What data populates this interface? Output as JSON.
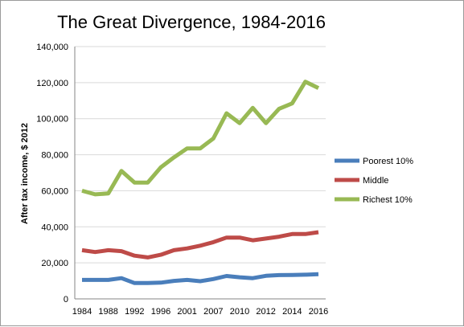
{
  "chart_data": {
    "type": "line",
    "title": "The Great Divergence, 1984-2016",
    "xlabel": "",
    "ylabel": "After tax income, $ 2012",
    "ylim": [
      0,
      140000
    ],
    "yticks": [
      0,
      20000,
      40000,
      60000,
      80000,
      100000,
      120000,
      140000
    ],
    "ytick_labels": [
      "0",
      "20,000",
      "40,000",
      "60,000",
      "80,000",
      "100,000",
      "120,000",
      "140,000"
    ],
    "grid": "horizontal",
    "legend_position": "right",
    "x": [
      "1984",
      "1986",
      "1988",
      "1990",
      "1992",
      "1994",
      "1996",
      "1998",
      "2001",
      "2003",
      "2007",
      "2008",
      "2010",
      "2011",
      "2012",
      "2013",
      "2014",
      "2015",
      "2016"
    ],
    "x_tick_labels": [
      "1984",
      "1988",
      "1992",
      "1996",
      "2001",
      "2007",
      "2010",
      "2012",
      "2014",
      "2016"
    ],
    "series": [
      {
        "name": "Poorest 10%",
        "color": "#4a7ebb",
        "values": [
          10500,
          10500,
          10500,
          11500,
          8800,
          8800,
          9000,
          10000,
          10500,
          9800,
          11000,
          12700,
          12000,
          11500,
          12800,
          13200,
          13300,
          13400,
          13700
        ]
      },
      {
        "name": "Middle",
        "color": "#be4b48",
        "values": [
          27000,
          26000,
          27000,
          26500,
          24000,
          23000,
          24500,
          27000,
          28000,
          29500,
          31500,
          34000,
          34000,
          32500,
          33500,
          34500,
          36000,
          36000,
          37000
        ]
      },
      {
        "name": "Richest 10%",
        "color": "#98b954",
        "values": [
          60000,
          58000,
          58500,
          71000,
          64500,
          64500,
          73000,
          78500,
          83500,
          83500,
          89000,
          103000,
          97500,
          106000,
          97500,
          105500,
          108500,
          120500,
          117000
        ]
      }
    ]
  }
}
